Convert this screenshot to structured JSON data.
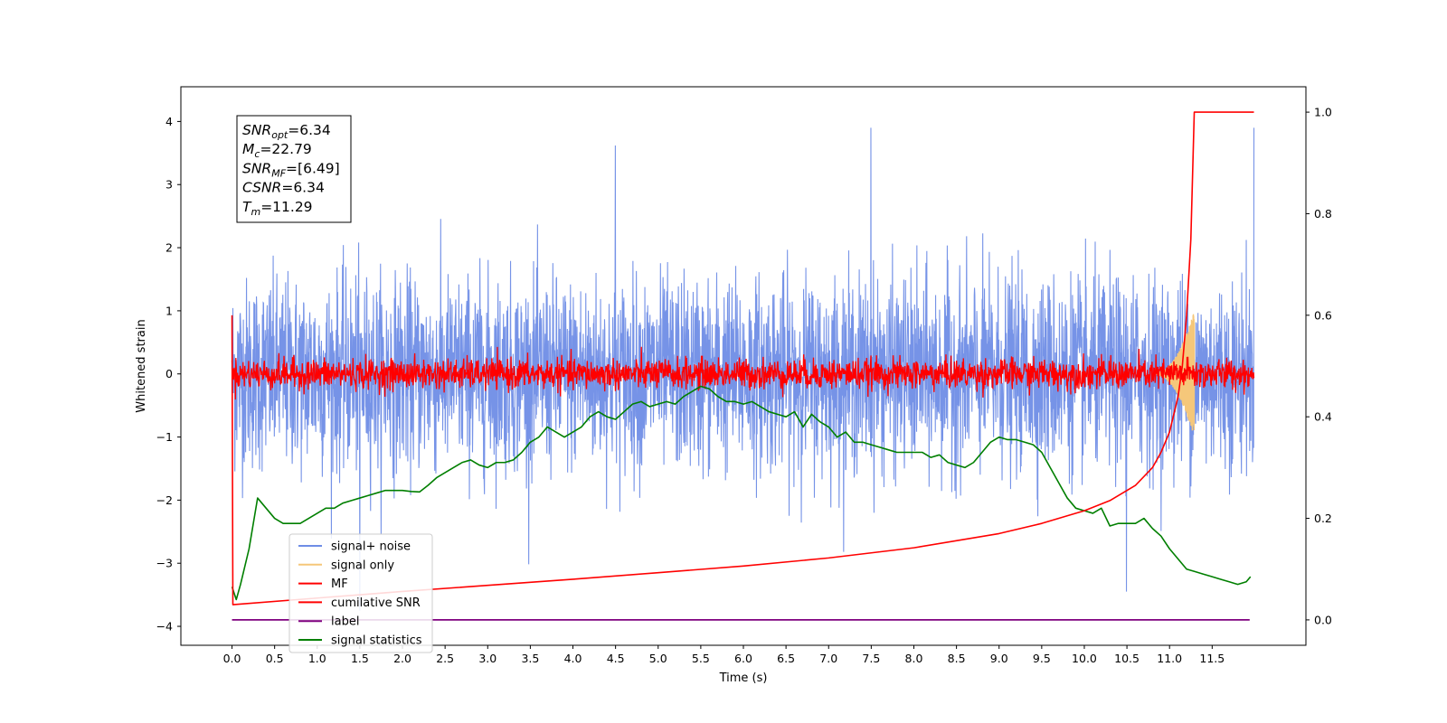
{
  "chart_data": {
    "type": "line",
    "title": "",
    "xlabel": "Time (s)",
    "ylabel": "Whitened strain",
    "ylabel_right": "",
    "xlim": [
      -0.6,
      12.6
    ],
    "ylim": [
      -4.3,
      4.55
    ],
    "ylim_right": [
      -0.05,
      1.05
    ],
    "x_ticks": [
      "0.0",
      "0.5",
      "1.0",
      "1.5",
      "2.0",
      "2.5",
      "3.0",
      "3.5",
      "4.0",
      "4.5",
      "5.0",
      "5.5",
      "6.0",
      "6.5",
      "7.0",
      "7.5",
      "8.0",
      "8.5",
      "9.0",
      "9.5",
      "10.0",
      "10.5",
      "11.0",
      "11.5"
    ],
    "y_ticks": [
      "4",
      "3",
      "2",
      "1",
      "0",
      "−1",
      "−2",
      "−3",
      "−4"
    ],
    "y_ticks_right": [
      "1.0",
      "0.8",
      "0.6",
      "0.4",
      "0.2",
      "0.0"
    ],
    "info_box": [
      {
        "base": "SNR",
        "sub": "opt",
        "rest": "=6.34"
      },
      {
        "base": "M",
        "sub": "c",
        "rest": "=22.79"
      },
      {
        "base": "SNR",
        "sub": "MF",
        "rest": "=[6.49]"
      },
      {
        "base": "CSNR",
        "sub": "",
        "rest": "=6.34"
      },
      {
        "base": "T",
        "sub": "m",
        "rest": "=11.29"
      }
    ],
    "legend": {
      "placement": "lower-left",
      "entries": [
        {
          "name": "signal+ noise",
          "color": "#6f8de6"
        },
        {
          "name": "signal only",
          "color": "#f5c77a"
        },
        {
          "name": "MF",
          "color": "#ff0000"
        },
        {
          "name": "cumilative SNR",
          "color": "#ff0000"
        },
        {
          "name": "label",
          "color": "#7f007f"
        },
        {
          "name": "signal statistics",
          "color": "#007f00"
        }
      ]
    },
    "series": [
      {
        "name": "signal+ noise",
        "axis": "left",
        "kind": "noise",
        "x_range": [
          0.0,
          11.99
        ],
        "amplitude_std": 0.75,
        "peak_values": [
          -3.75,
          3.62,
          4.15,
          -3.45
        ],
        "color": "#6f8de6"
      },
      {
        "name": "signal only",
        "axis": "left",
        "kind": "chirp",
        "x_range": [
          10.8,
          11.29
        ],
        "peak_amplitude": 1.0,
        "color": "#f5c77a"
      },
      {
        "name": "MF",
        "axis": "left",
        "kind": "noise",
        "x_range": [
          0.0,
          11.99
        ],
        "amplitude_std": 0.12,
        "color": "#ff0000"
      },
      {
        "name": "cumilative SNR",
        "axis": "right",
        "x": [
          0.0,
          0.01,
          1.0,
          2.0,
          3.0,
          4.0,
          5.0,
          6.0,
          7.0,
          8.0,
          9.0,
          9.5,
          10.0,
          10.3,
          10.6,
          10.8,
          10.9,
          11.0,
          11.1,
          11.15,
          11.2,
          11.25,
          11.29,
          11.99
        ],
        "y": [
          0.6,
          0.03,
          0.043,
          0.056,
          0.068,
          0.08,
          0.093,
          0.106,
          0.122,
          0.142,
          0.17,
          0.19,
          0.215,
          0.235,
          0.265,
          0.3,
          0.33,
          0.37,
          0.44,
          0.5,
          0.6,
          0.75,
          1.0,
          1.0
        ],
        "color": "#ff0000"
      },
      {
        "name": "label",
        "axis": "right",
        "x": [
          0.0,
          11.94
        ],
        "y": [
          0.0,
          0.0
        ],
        "color": "#7f007f"
      },
      {
        "name": "signal statistics",
        "axis": "right",
        "x": [
          0.0,
          0.05,
          0.1,
          0.2,
          0.3,
          0.4,
          0.5,
          0.6,
          0.7,
          0.8,
          0.9,
          1.0,
          1.1,
          1.2,
          1.3,
          1.4,
          1.5,
          1.6,
          1.7,
          1.8,
          1.9,
          2.0,
          2.1,
          2.2,
          2.3,
          2.4,
          2.5,
          2.6,
          2.7,
          2.8,
          2.9,
          3.0,
          3.1,
          3.2,
          3.3,
          3.4,
          3.5,
          3.6,
          3.7,
          3.8,
          3.9,
          4.0,
          4.1,
          4.2,
          4.3,
          4.4,
          4.5,
          4.6,
          4.7,
          4.8,
          4.9,
          5.0,
          5.1,
          5.2,
          5.3,
          5.4,
          5.5,
          5.6,
          5.7,
          5.8,
          5.9,
          6.0,
          6.1,
          6.2,
          6.3,
          6.4,
          6.5,
          6.6,
          6.7,
          6.8,
          6.9,
          7.0,
          7.1,
          7.2,
          7.3,
          7.4,
          7.5,
          7.6,
          7.7,
          7.8,
          7.9,
          8.0,
          8.1,
          8.2,
          8.3,
          8.4,
          8.5,
          8.6,
          8.7,
          8.8,
          8.9,
          9.0,
          9.1,
          9.2,
          9.3,
          9.4,
          9.5,
          9.6,
          9.7,
          9.8,
          9.9,
          10.0,
          10.1,
          10.2,
          10.3,
          10.4,
          10.5,
          10.6,
          10.7,
          10.8,
          10.9,
          11.0,
          11.1,
          11.2,
          11.3,
          11.4,
          11.5,
          11.6,
          11.7,
          11.8,
          11.9,
          11.95
        ],
        "y": [
          0.065,
          0.04,
          0.07,
          0.14,
          0.24,
          0.22,
          0.2,
          0.19,
          0.19,
          0.19,
          0.2,
          0.21,
          0.22,
          0.22,
          0.23,
          0.235,
          0.24,
          0.245,
          0.25,
          0.255,
          0.255,
          0.255,
          0.253,
          0.252,
          0.265,
          0.28,
          0.29,
          0.3,
          0.31,
          0.315,
          0.305,
          0.3,
          0.31,
          0.31,
          0.315,
          0.33,
          0.35,
          0.36,
          0.38,
          0.37,
          0.36,
          0.37,
          0.38,
          0.4,
          0.41,
          0.4,
          0.395,
          0.41,
          0.425,
          0.43,
          0.42,
          0.425,
          0.43,
          0.425,
          0.44,
          0.45,
          0.46,
          0.455,
          0.44,
          0.43,
          0.43,
          0.425,
          0.43,
          0.42,
          0.41,
          0.405,
          0.4,
          0.41,
          0.38,
          0.405,
          0.39,
          0.38,
          0.36,
          0.37,
          0.35,
          0.35,
          0.345,
          0.34,
          0.335,
          0.33,
          0.33,
          0.33,
          0.33,
          0.32,
          0.325,
          0.31,
          0.305,
          0.3,
          0.31,
          0.33,
          0.35,
          0.36,
          0.355,
          0.355,
          0.35,
          0.345,
          0.33,
          0.3,
          0.27,
          0.24,
          0.22,
          0.215,
          0.21,
          0.22,
          0.185,
          0.19,
          0.19,
          0.19,
          0.2,
          0.18,
          0.165,
          0.14,
          0.12,
          0.1,
          0.095,
          0.09,
          0.085,
          0.08,
          0.075,
          0.07,
          0.075,
          0.085
        ],
        "color": "#007f00"
      }
    ]
  }
}
